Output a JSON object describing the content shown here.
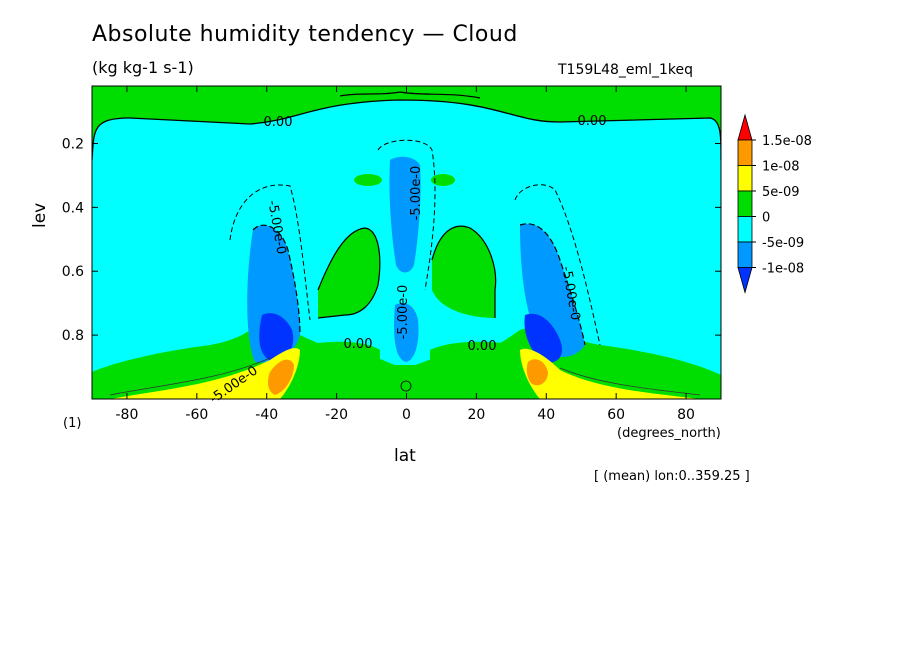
{
  "chart_data": {
    "type": "heatmap",
    "title": "Absolute humidity tendency — Cloud",
    "units": "(kg kg-1 s-1)",
    "run_label": "T159L48_eml_1keq",
    "xlabel": "lat",
    "x_units": "(degrees_north)",
    "ylabel": "lev",
    "y_note": "(1)",
    "mean_note": "[ (mean) lon:0..359.25 ]",
    "xlim": [
      -90,
      90
    ],
    "ylim": [
      1.0,
      0.02
    ],
    "x_ticks": [
      -80,
      -60,
      -40,
      -20,
      0,
      20,
      40,
      60,
      80
    ],
    "y_ticks": [
      0.2,
      0.4,
      0.6,
      0.8
    ],
    "contour_labels": [
      "0.00",
      "0.00",
      "-5.00e-0",
      "-5.00e-0",
      "-5.00e-0",
      "0.00",
      "0.00",
      "-5.00e-0",
      "-5.00e-0"
    ],
    "colorbar": {
      "labels": [
        "1.5e-08",
        "1e-08",
        "5e-09",
        "0",
        "-5e-09",
        "-1e-08"
      ],
      "colors": [
        "#ff0000",
        "#ff9900",
        "#ffff00",
        "#00dd00",
        "#00ffff",
        "#0099ff",
        "#0033ff"
      ]
    }
  }
}
